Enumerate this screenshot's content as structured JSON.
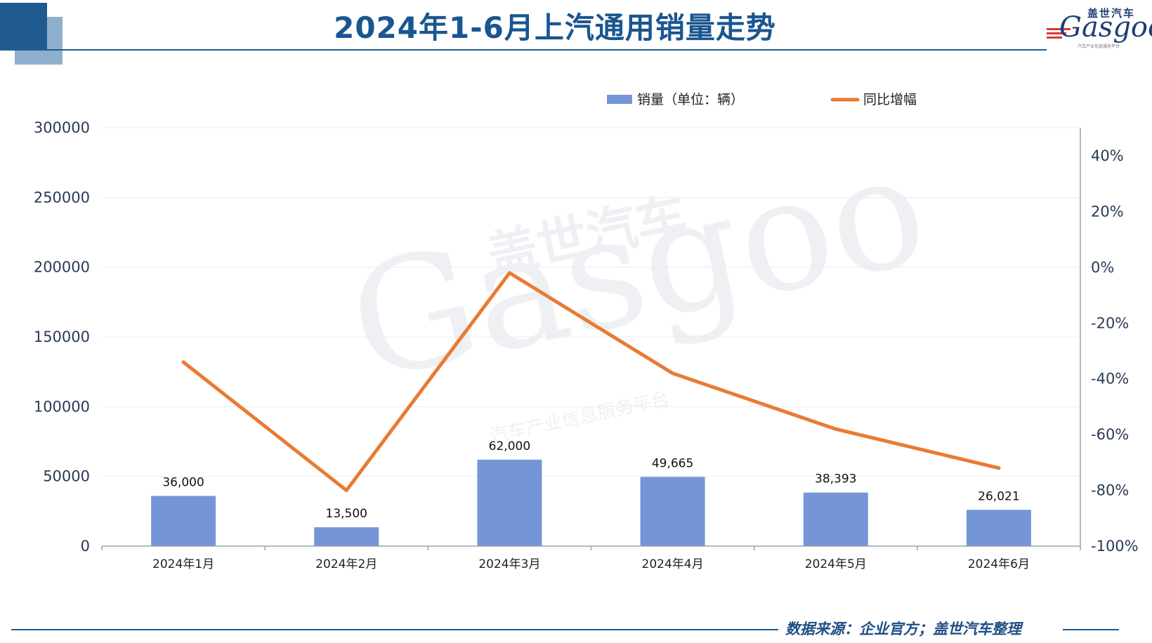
{
  "title": "2024年1-6月上汽通用销量走势",
  "logo": {
    "cn": "盖世汽车",
    "en": "Gasgoo",
    "sub": "汽车产业信息服务平台"
  },
  "watermark": {
    "cn": "盖世汽车",
    "en": "Gasgoo",
    "sub": "汽车产业信息服务平台"
  },
  "footer": {
    "source": "数据来源：企业官方；盖世汽车整理"
  },
  "colors": {
    "bar": "#7596d6",
    "line": "#e97b32",
    "accent": "#1f5b8f"
  },
  "chart_data": {
    "type": "bar",
    "categories": [
      "2024年1月",
      "2024年2月",
      "2024年3月",
      "2024年4月",
      "2024年5月",
      "2024年6月"
    ],
    "series": [
      {
        "name": "销量（单位：辆）",
        "type": "bar",
        "axis": "left",
        "values": [
          36000,
          13500,
          62000,
          49665,
          38393,
          26021
        ],
        "labels": [
          "36,000",
          "13,500",
          "62,000",
          "49,665",
          "38,393",
          "26,021"
        ]
      },
      {
        "name": "同比增幅",
        "type": "line",
        "axis": "right",
        "values": [
          -34,
          -80,
          -2,
          -38,
          -58,
          -72
        ]
      }
    ],
    "y_left": {
      "min": 0,
      "max": 300000,
      "ticks": [
        0,
        50000,
        100000,
        150000,
        200000,
        250000,
        300000
      ],
      "tick_labels": [
        "0",
        "50000",
        "100000",
        "150000",
        "200000",
        "250000",
        "300000"
      ]
    },
    "y_right": {
      "min": -100,
      "max": 50,
      "ticks": [
        -100,
        -80,
        -60,
        -40,
        -20,
        0,
        20,
        40
      ],
      "tick_labels": [
        "-100%",
        "-80%",
        "-60%",
        "-40%",
        "-20%",
        "0%",
        "20%",
        "40%"
      ]
    },
    "legend_position": "top-right",
    "grid": true
  }
}
